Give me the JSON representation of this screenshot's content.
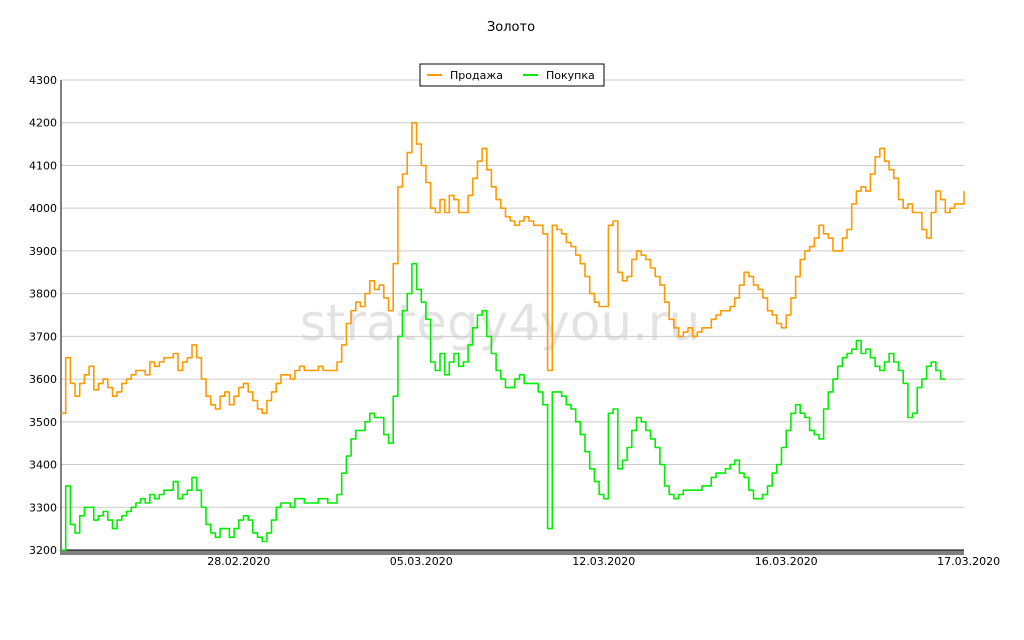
{
  "chart_data": {
    "type": "line",
    "title": "Золото",
    "watermark": "strategy4you.ru",
    "ylim": [
      3200,
      4300
    ],
    "y_ticks": [
      "3200",
      "3300",
      "3400",
      "3500",
      "3600",
      "3700",
      "3800",
      "3900",
      "4000",
      "4100",
      "4200",
      "4300"
    ],
    "x_tick_labels": [
      "28.02.2020",
      "05.03.2020",
      "12.03.2020",
      "16.03.2020",
      "17.03.2020"
    ],
    "x_tick_index": [
      38,
      77,
      116,
      155,
      194
    ],
    "grid": "horizontal",
    "legend_position": "top-center",
    "series": [
      {
        "name": "Продажа",
        "color": "#FF9900",
        "values": [
          3520,
          3650,
          3590,
          3560,
          3590,
          3610,
          3630,
          3575,
          3590,
          3600,
          3580,
          3560,
          3570,
          3590,
          3600,
          3610,
          3620,
          3620,
          3610,
          3640,
          3630,
          3640,
          3650,
          3650,
          3660,
          3620,
          3640,
          3650,
          3680,
          3650,
          3600,
          3560,
          3540,
          3530,
          3560,
          3570,
          3540,
          3560,
          3580,
          3590,
          3570,
          3550,
          3530,
          3520,
          3550,
          3570,
          3590,
          3610,
          3610,
          3600,
          3620,
          3630,
          3620,
          3620,
          3620,
          3630,
          3620,
          3620,
          3620,
          3640,
          3680,
          3730,
          3760,
          3780,
          3770,
          3800,
          3830,
          3810,
          3820,
          3790,
          3760,
          3870,
          4050,
          4080,
          4130,
          4200,
          4150,
          4100,
          4060,
          4000,
          3990,
          4020,
          3990,
          4030,
          4020,
          3990,
          3990,
          4030,
          4070,
          4110,
          4140,
          4090,
          4050,
          4020,
          4000,
          3980,
          3970,
          3960,
          3970,
          3980,
          3970,
          3960,
          3960,
          3940,
          3620,
          3960,
          3950,
          3940,
          3920,
          3910,
          3890,
          3870,
          3840,
          3800,
          3780,
          3770,
          3770,
          3960,
          3970,
          3850,
          3830,
          3840,
          3880,
          3900,
          3890,
          3880,
          3860,
          3840,
          3820,
          3780,
          3740,
          3720,
          3700,
          3710,
          3720,
          3700,
          3710,
          3720,
          3720,
          3740,
          3750,
          3760,
          3760,
          3770,
          3790,
          3820,
          3850,
          3840,
          3820,
          3810,
          3790,
          3760,
          3750,
          3730,
          3720,
          3750,
          3790,
          3840,
          3880,
          3900,
          3910,
          3930,
          3960,
          3940,
          3930,
          3900,
          3900,
          3930,
          3950,
          4010,
          4040,
          4050,
          4040,
          4080,
          4120,
          4140,
          4110,
          4090,
          4070,
          4020,
          4000,
          4010,
          3990,
          3990,
          3950,
          3930,
          3990,
          4040,
          4020,
          3990,
          4000,
          4010,
          4010,
          4040
        ]
      },
      {
        "name": "Покупка",
        "color": "#00EE00",
        "values": [
          3200,
          3350,
          3260,
          3240,
          3280,
          3300,
          3300,
          3270,
          3280,
          3290,
          3270,
          3250,
          3270,
          3280,
          3290,
          3300,
          3310,
          3320,
          3310,
          3330,
          3320,
          3330,
          3340,
          3340,
          3360,
          3320,
          3330,
          3340,
          3370,
          3340,
          3300,
          3260,
          3240,
          3230,
          3250,
          3250,
          3230,
          3250,
          3270,
          3280,
          3270,
          3240,
          3230,
          3220,
          3240,
          3270,
          3300,
          3310,
          3310,
          3300,
          3320,
          3320,
          3310,
          3310,
          3310,
          3320,
          3320,
          3310,
          3310,
          3330,
          3380,
          3420,
          3460,
          3480,
          3480,
          3500,
          3520,
          3510,
          3510,
          3470,
          3450,
          3560,
          3700,
          3760,
          3800,
          3870,
          3810,
          3780,
          3740,
          3640,
          3620,
          3660,
          3610,
          3640,
          3660,
          3630,
          3640,
          3680,
          3720,
          3750,
          3760,
          3700,
          3660,
          3620,
          3600,
          3580,
          3580,
          3600,
          3610,
          3590,
          3590,
          3590,
          3570,
          3540,
          3250,
          3570,
          3570,
          3560,
          3540,
          3530,
          3500,
          3470,
          3430,
          3390,
          3360,
          3330,
          3320,
          3520,
          3530,
          3390,
          3410,
          3440,
          3480,
          3510,
          3500,
          3480,
          3460,
          3440,
          3400,
          3350,
          3330,
          3320,
          3330,
          3340,
          3340,
          3340,
          3340,
          3350,
          3350,
          3370,
          3380,
          3380,
          3390,
          3400,
          3410,
          3380,
          3370,
          3340,
          3320,
          3320,
          3330,
          3350,
          3380,
          3400,
          3440,
          3480,
          3520,
          3540,
          3520,
          3510,
          3480,
          3470,
          3460,
          3530,
          3570,
          3600,
          3630,
          3650,
          3660,
          3670,
          3690,
          3660,
          3670,
          3650,
          3630,
          3620,
          3640,
          3660,
          3640,
          3620,
          3590,
          3510,
          3520,
          3580,
          3600,
          3630,
          3640,
          3620,
          3600,
          3600
        ]
      }
    ]
  }
}
